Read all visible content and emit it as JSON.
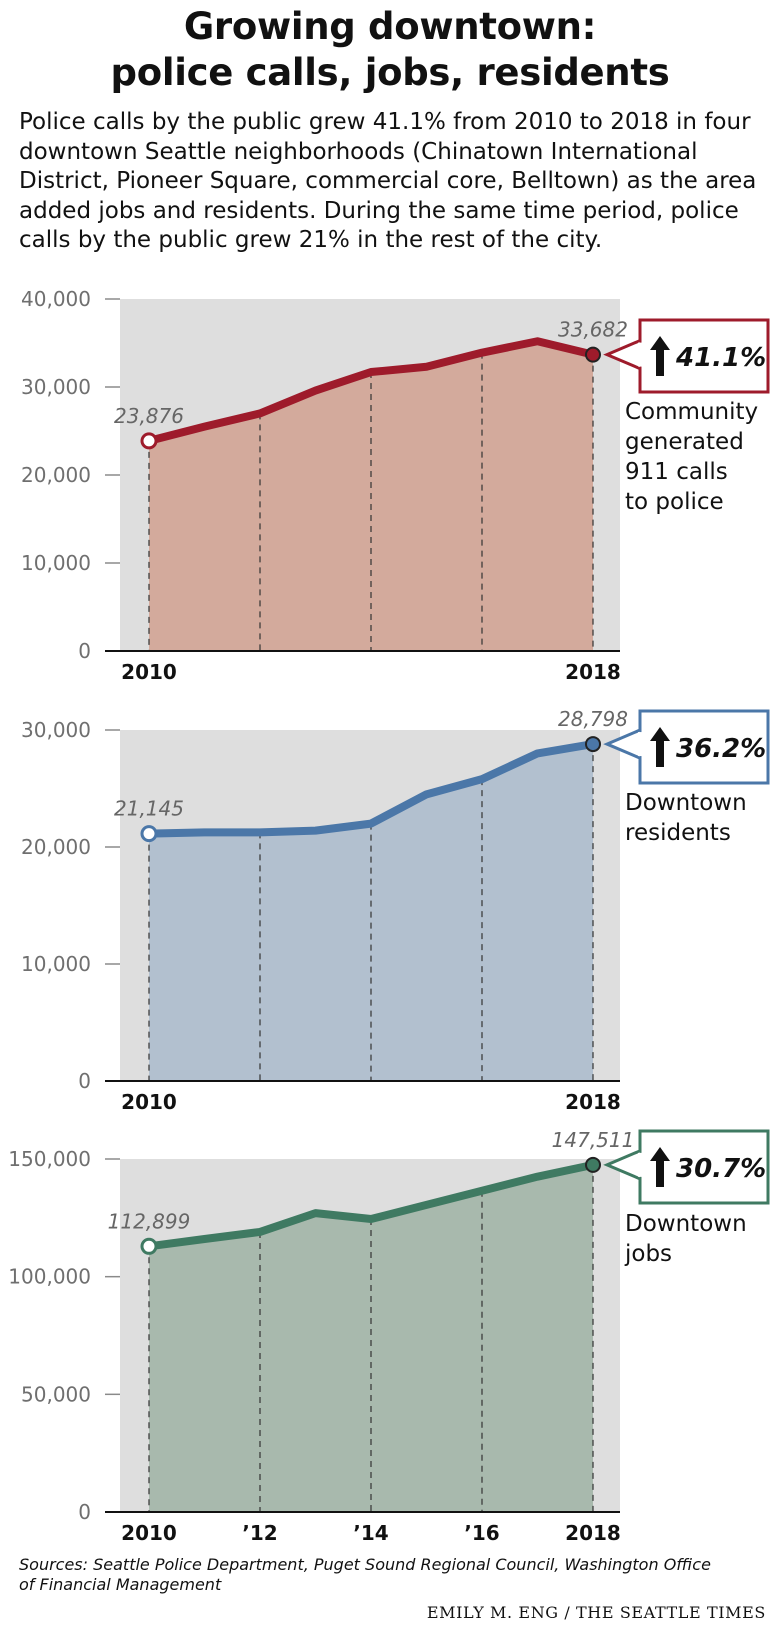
{
  "title_line1": "Growing downtown:",
  "title_line2": "police calls, jobs, residents",
  "intro": "Police calls by the public grew 41.1% from 2010 to 2018 in four downtown Seattle neighborhoods (Chinatown International District, Pioneer Square, commercial core, Belltown) as the area added jobs and residents. During the same time period, police calls by the public grew 21% in the rest of the city.",
  "sources": "Sources: Seattle Police Department, Puget Sound Regional Council, Washington Office of Financial Management",
  "credit": "EMILY M. ENG / THE SEATTLE TIMES",
  "chart_data": [
    {
      "type": "area",
      "x": [
        2010,
        2011,
        2012,
        2013,
        2014,
        2015,
        2016,
        2017,
        2018
      ],
      "series": [
        {
          "values": [
            23876,
            25500,
            27000,
            29600,
            31700,
            32300,
            33900,
            35200,
            33682
          ]
        }
      ],
      "ylim": [
        0,
        40000
      ],
      "yticks": [
        0,
        10000,
        20000,
        30000,
        40000
      ],
      "ytick_labels": [
        "0",
        "10,000",
        "20,000",
        "30,000",
        "40,000"
      ],
      "xtick_labels": [
        "2010",
        "",
        "",
        "",
        "2018"
      ],
      "start_label": "23,876",
      "end_label": "33,682",
      "change": "41.1%",
      "caption": [
        "Community",
        "generated",
        "911 calls",
        "to police"
      ],
      "line_color": "#9e1b2b",
      "fill_color": "#d3aa9c",
      "grid": false
    },
    {
      "type": "area",
      "x": [
        2010,
        2011,
        2012,
        2013,
        2014,
        2015,
        2016,
        2017,
        2018
      ],
      "series": [
        {
          "values": [
            21145,
            21250,
            21250,
            21400,
            22000,
            24500,
            25800,
            28000,
            28798
          ]
        }
      ],
      "ylim": [
        0,
        30000
      ],
      "yticks": [
        0,
        10000,
        20000,
        30000
      ],
      "ytick_labels": [
        "0",
        "10,000",
        "20,000",
        "30,000"
      ],
      "xtick_labels": [
        "2010",
        "",
        "",
        "",
        "2018"
      ],
      "start_label": "21,145",
      "end_label": "28,798",
      "change": "36.2%",
      "caption": [
        "Downtown",
        "residents"
      ],
      "line_color": "#4b77a8",
      "fill_color": "#b2c0cf",
      "grid": false
    },
    {
      "type": "area",
      "x": [
        2010,
        2011,
        2012,
        2013,
        2014,
        2015,
        2016,
        2017,
        2018
      ],
      "series": [
        {
          "values": [
            112899,
            116000,
            119000,
            127000,
            124500,
            130500,
            136500,
            142500,
            147511
          ]
        }
      ],
      "ylim": [
        0,
        150000
      ],
      "yticks": [
        0,
        50000,
        100000,
        150000
      ],
      "ytick_labels": [
        "0",
        "50,000",
        "100,000",
        "150,000"
      ],
      "xtick_labels": [
        "2010",
        "’12",
        "’14",
        "’16",
        "2018"
      ],
      "start_label": "112,899",
      "end_label": "147,511",
      "change": "30.7%",
      "caption": [
        "Downtown",
        "jobs"
      ],
      "line_color": "#3f7a62",
      "fill_color": "#a8b9ad",
      "grid": false
    }
  ]
}
